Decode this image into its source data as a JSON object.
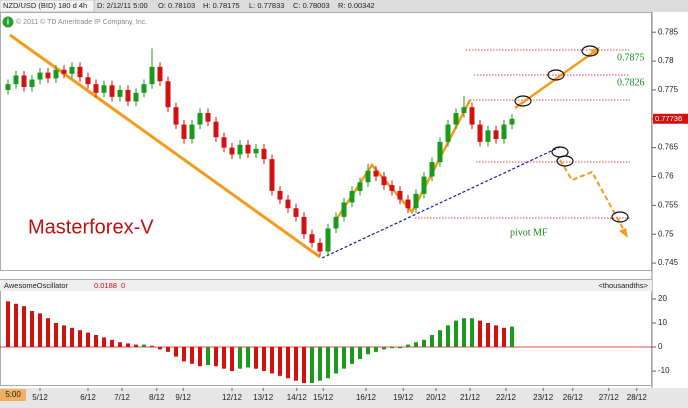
{
  "header": {
    "symbol": "NZD/USD (BID) 180 d 4h",
    "date": "D: 2/12/11 5:00",
    "open": "O: 0.78103",
    "high": "H: 0.78175",
    "low": "L: 0.77833",
    "close": "C: 0.78003",
    "range": "R: 0.00342",
    "time_box": "5:00"
  },
  "chart_data": [
    {
      "type": "candlestick",
      "copyright": "© 2011 © TD Ameritrade IP Company, Inc.",
      "watermark": "Masterforex-V",
      "last_price": "0.77736",
      "annotations": {
        "target_1": "0.7875",
        "target_2": "0.7826",
        "pivot": "pivot MF"
      },
      "up_color": "#1a9a1a",
      "down_color": "#d41111",
      "ylim": [
        0.7438,
        0.7885
      ],
      "yticks": [
        0.785,
        0.78,
        0.775,
        0.77,
        0.765,
        0.76,
        0.755,
        0.75,
        0.745
      ],
      "xticks": [
        {
          "value": 4,
          "label": "5/12"
        },
        {
          "value": 10,
          "label": "6/12"
        },
        {
          "value": 14.25,
          "label": "7/12"
        },
        {
          "value": 18.6,
          "label": "8/12"
        },
        {
          "value": 21.9,
          "label": "9/12"
        },
        {
          "value": 28,
          "label": "12/12"
        },
        {
          "value": 31.9,
          "label": "13/12"
        },
        {
          "value": 36.1,
          "label": "14/12"
        },
        {
          "value": 39.4,
          "label": "15/12"
        },
        {
          "value": 44.75,
          "label": "16/12"
        },
        {
          "value": 49.4,
          "label": "19/12"
        },
        {
          "value": 53.5,
          "label": "20/12"
        },
        {
          "value": 57.75,
          "label": "21/12"
        },
        {
          "value": 62.25,
          "label": "22/12"
        },
        {
          "value": 66.9,
          "label": "23/12"
        },
        {
          "value": 70.6,
          "label": "26/12"
        },
        {
          "value": 75.1,
          "label": "27/12"
        },
        {
          "value": 78.6,
          "label": "28/12"
        }
      ],
      "ohlc": [
        [
          0.775,
          0.7768,
          0.7742,
          0.776
        ],
        [
          0.776,
          0.7783,
          0.7752,
          0.7775
        ],
        [
          0.7775,
          0.7783,
          0.7747,
          0.7755
        ],
        [
          0.7755,
          0.7776,
          0.7747,
          0.7768
        ],
        [
          0.7768,
          0.7788,
          0.776,
          0.778
        ],
        [
          0.778,
          0.7788,
          0.7762,
          0.777
        ],
        [
          0.777,
          0.7793,
          0.7762,
          0.7785
        ],
        [
          0.7785,
          0.7793,
          0.777,
          0.7778
        ],
        [
          0.7778,
          0.7798,
          0.777,
          0.779
        ],
        [
          0.779,
          0.7798,
          0.7764,
          0.7772
        ],
        [
          0.7772,
          0.778,
          0.7752,
          0.776
        ],
        [
          0.776,
          0.7768,
          0.7737,
          0.7745
        ],
        [
          0.7745,
          0.7766,
          0.7737,
          0.7758
        ],
        [
          0.7758,
          0.7766,
          0.773,
          0.7738
        ],
        [
          0.7738,
          0.7758,
          0.773,
          0.775
        ],
        [
          0.775,
          0.7758,
          0.7722,
          0.773
        ],
        [
          0.773,
          0.7753,
          0.7722,
          0.7745
        ],
        [
          0.7745,
          0.7768,
          0.7737,
          0.776
        ],
        [
          0.776,
          0.7822,
          0.7752,
          0.779
        ],
        [
          0.779,
          0.7798,
          0.7757,
          0.7765
        ],
        [
          0.7765,
          0.7773,
          0.7712,
          0.772
        ],
        [
          0.772,
          0.7728,
          0.7682,
          0.769
        ],
        [
          0.769,
          0.7698,
          0.7657,
          0.7665
        ],
        [
          0.7665,
          0.7698,
          0.7657,
          0.769
        ],
        [
          0.769,
          0.7718,
          0.7682,
          0.771
        ],
        [
          0.771,
          0.7718,
          0.7687,
          0.7695
        ],
        [
          0.7695,
          0.7703,
          0.766,
          0.7668
        ],
        [
          0.7668,
          0.7676,
          0.7642,
          0.765
        ],
        [
          0.765,
          0.7658,
          0.763,
          0.7638
        ],
        [
          0.7638,
          0.7663,
          0.763,
          0.7655
        ],
        [
          0.7655,
          0.7663,
          0.7632,
          0.764
        ],
        [
          0.764,
          0.7656,
          0.7632,
          0.7648
        ],
        [
          0.7648,
          0.7656,
          0.7622,
          0.763
        ],
        [
          0.763,
          0.7638,
          0.7567,
          0.7575
        ],
        [
          0.7575,
          0.7583,
          0.7552,
          0.756
        ],
        [
          0.756,
          0.7568,
          0.7537,
          0.7545
        ],
        [
          0.7545,
          0.7553,
          0.7522,
          0.753
        ],
        [
          0.753,
          0.7538,
          0.7492,
          0.75
        ],
        [
          0.75,
          0.7508,
          0.7477,
          0.7485
        ],
        [
          0.7485,
          0.7493,
          0.7462,
          0.747
        ],
        [
          0.747,
          0.7518,
          0.7462,
          0.751
        ],
        [
          0.751,
          0.7538,
          0.7502,
          0.753
        ],
        [
          0.753,
          0.7563,
          0.7522,
          0.7555
        ],
        [
          0.7555,
          0.7583,
          0.7547,
          0.7575
        ],
        [
          0.7575,
          0.7598,
          0.7567,
          0.759
        ],
        [
          0.759,
          0.7622,
          0.7582,
          0.761
        ],
        [
          0.761,
          0.7618,
          0.7592,
          0.76
        ],
        [
          0.76,
          0.7608,
          0.7577,
          0.7585
        ],
        [
          0.7585,
          0.7593,
          0.7567,
          0.7575
        ],
        [
          0.7575,
          0.7583,
          0.7552,
          0.756
        ],
        [
          0.756,
          0.7568,
          0.7537,
          0.7545
        ],
        [
          0.7545,
          0.7578,
          0.7537,
          0.757
        ],
        [
          0.757,
          0.7608,
          0.7562,
          0.76
        ],
        [
          0.76,
          0.7633,
          0.7592,
          0.7625
        ],
        [
          0.7625,
          0.7668,
          0.7617,
          0.766
        ],
        [
          0.766,
          0.7698,
          0.7652,
          0.769
        ],
        [
          0.769,
          0.7718,
          0.7682,
          0.771
        ],
        [
          0.771,
          0.774,
          0.7702,
          0.772
        ],
        [
          0.772,
          0.7728,
          0.7682,
          0.769
        ],
        [
          0.769,
          0.7698,
          0.7652,
          0.766
        ],
        [
          0.766,
          0.7688,
          0.7652,
          0.768
        ],
        [
          0.768,
          0.7688,
          0.7657,
          0.7665
        ],
        [
          0.7665,
          0.7698,
          0.7657,
          0.769
        ],
        [
          0.769,
          0.7708,
          0.7682,
          0.77
        ]
      ]
    },
    {
      "type": "bar",
      "name": "AwesomeOscillator",
      "current": "0.0188",
      "current_2": "0",
      "unit": "<thousandths>",
      "up_color": "#1a9a1a",
      "down_color": "#d41111",
      "ylim": [
        -15.8,
        22.9
      ],
      "yticks": [
        20,
        10,
        0,
        -10
      ],
      "values": [
        19,
        18,
        17,
        15,
        14,
        12,
        10,
        9,
        8,
        7,
        6,
        5,
        4,
        3,
        2,
        1.5,
        1,
        1,
        0.5,
        -1,
        -2,
        -4,
        -6,
        -7,
        -8,
        -7.5,
        -8,
        -9,
        -10,
        -9,
        -8.5,
        -9,
        -10,
        -11,
        -12,
        -13,
        -14,
        -15,
        -15,
        -14,
        -13,
        -11,
        -9,
        -7,
        -5,
        -3,
        -2,
        -1,
        -0.5,
        -0.5,
        1,
        2,
        3,
        5,
        7,
        9,
        11,
        12,
        12,
        11,
        10,
        9,
        8,
        8.5
      ]
    }
  ]
}
